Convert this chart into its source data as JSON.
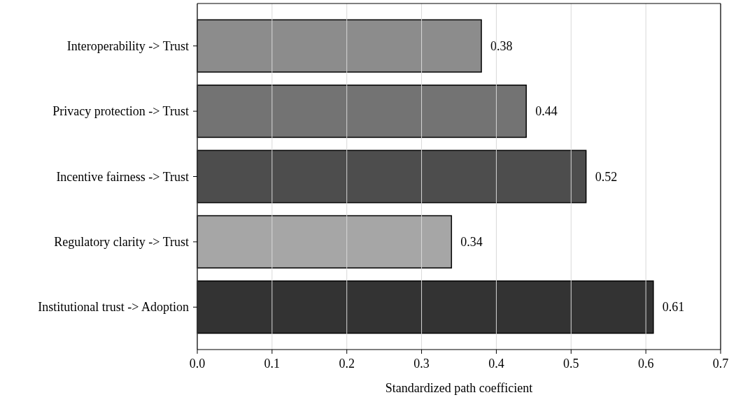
{
  "chart_data": {
    "type": "bar",
    "orientation": "horizontal",
    "xlabel": "Standardized path coefficient",
    "categories": [
      "Interoperability -> Trust",
      "Privacy protection -> Trust",
      "Incentive fairness -> Trust",
      "Regulatory clarity -> Trust",
      "Institutional trust -> Adoption"
    ],
    "values": [
      0.38,
      0.44,
      0.52,
      0.34,
      0.61
    ],
    "colors": [
      "#8c8c8c",
      "#737373",
      "#4d4d4d",
      "#a6a6a6",
      "#333333"
    ],
    "xlim": [
      0,
      0.7
    ],
    "xticks": [
      {
        "value": 0,
        "label": "0.0"
      },
      0.1,
      0.2,
      0.3,
      0.4,
      0.5,
      0.6,
      0.7
    ],
    "grid": "x",
    "data_labels": true
  }
}
